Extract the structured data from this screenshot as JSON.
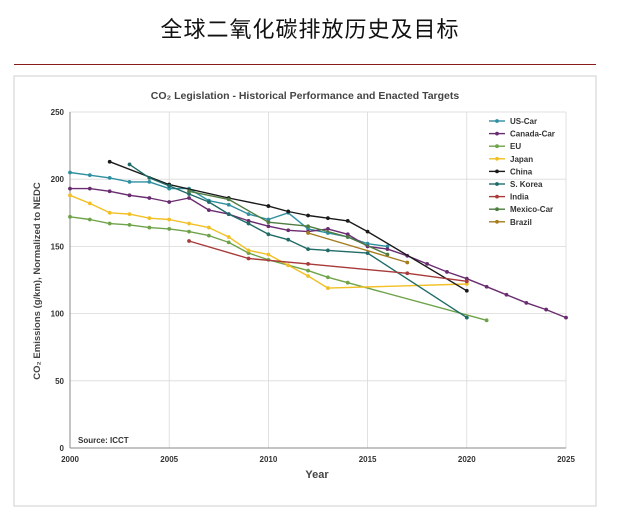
{
  "page": {
    "title": "全球二氧化碳排放历史及目标"
  },
  "chart_data": {
    "type": "line",
    "title": "CO₂ Legislation - Historical Performance and Enacted Targets",
    "xlabel": "Year",
    "ylabel": "CO₂ Emissions (g/km), Normalized to NEDC",
    "xlim": [
      2000,
      2025
    ],
    "ylim": [
      0,
      250
    ],
    "xticks": [
      2000,
      2005,
      2010,
      2015,
      2020,
      2025
    ],
    "yticks": [
      0,
      50,
      100,
      150,
      200,
      250
    ],
    "source": "Source: ICCT",
    "legend_position": "top-right",
    "series": [
      {
        "name": "US-Car",
        "color": "#2e8fa0",
        "points": [
          [
            2000,
            205
          ],
          [
            2001,
            203
          ],
          [
            2002,
            201
          ],
          [
            2003,
            198
          ],
          [
            2004,
            198
          ],
          [
            2005,
            193
          ],
          [
            2006,
            193
          ],
          [
            2007,
            184
          ],
          [
            2008,
            181
          ],
          [
            2009,
            174
          ],
          [
            2010,
            170
          ],
          [
            2011,
            175
          ],
          [
            2012,
            163
          ],
          [
            2013,
            160
          ],
          [
            2014,
            157
          ],
          [
            2015,
            152
          ],
          [
            2016,
            150
          ]
        ]
      },
      {
        "name": "Canada-Car",
        "color": "#6a2c70",
        "points": [
          [
            2000,
            193
          ],
          [
            2001,
            193
          ],
          [
            2002,
            191
          ],
          [
            2003,
            188
          ],
          [
            2004,
            186
          ],
          [
            2005,
            183
          ],
          [
            2006,
            186
          ],
          [
            2007,
            177
          ],
          [
            2008,
            174
          ],
          [
            2009,
            169
          ],
          [
            2010,
            165
          ],
          [
            2011,
            162
          ],
          [
            2012,
            161
          ],
          [
            2013,
            163
          ],
          [
            2014,
            159
          ],
          [
            2015,
            150
          ],
          [
            2016,
            148
          ],
          [
            2017,
            143
          ],
          [
            2018,
            137
          ],
          [
            2019,
            131
          ],
          [
            2020,
            126
          ],
          [
            2021,
            120
          ],
          [
            2022,
            114
          ],
          [
            2023,
            108
          ],
          [
            2024,
            103
          ],
          [
            2025,
            97
          ]
        ]
      },
      {
        "name": "EU",
        "color": "#6fa34a",
        "points": [
          [
            2000,
            172
          ],
          [
            2001,
            170
          ],
          [
            2002,
            167
          ],
          [
            2003,
            166
          ],
          [
            2004,
            164
          ],
          [
            2005,
            163
          ],
          [
            2006,
            161
          ],
          [
            2007,
            158
          ],
          [
            2008,
            153
          ],
          [
            2009,
            145
          ],
          [
            2010,
            140
          ],
          [
            2011,
            136
          ],
          [
            2012,
            132
          ],
          [
            2013,
            127
          ],
          [
            2014,
            123
          ],
          [
            2021,
            95
          ]
        ]
      },
      {
        "name": "Japan",
        "color": "#f2c024",
        "points": [
          [
            2000,
            188
          ],
          [
            2001,
            182
          ],
          [
            2002,
            175
          ],
          [
            2003,
            174
          ],
          [
            2004,
            171
          ],
          [
            2005,
            170
          ],
          [
            2006,
            167
          ],
          [
            2007,
            164
          ],
          [
            2008,
            157
          ],
          [
            2009,
            147
          ],
          [
            2010,
            144
          ],
          [
            2011,
            136
          ],
          [
            2012,
            128
          ],
          [
            2013,
            119
          ],
          [
            2020,
            122
          ]
        ]
      },
      {
        "name": "China",
        "color": "#1a1a1a",
        "points": [
          [
            2002,
            213
          ],
          [
            2005,
            196
          ],
          [
            2008,
            186
          ],
          [
            2010,
            180
          ],
          [
            2011,
            176
          ],
          [
            2012,
            173
          ],
          [
            2013,
            171
          ],
          [
            2014,
            169
          ],
          [
            2015,
            161
          ],
          [
            2020,
            117
          ]
        ]
      },
      {
        "name": "S. Korea",
        "color": "#1f6b68",
        "points": [
          [
            2003,
            211
          ],
          [
            2004,
            201
          ],
          [
            2005,
            195
          ],
          [
            2006,
            189
          ],
          [
            2007,
            183
          ],
          [
            2008,
            174
          ],
          [
            2009,
            167
          ],
          [
            2010,
            159
          ],
          [
            2011,
            155
          ],
          [
            2012,
            148
          ],
          [
            2013,
            147
          ],
          [
            2015,
            145
          ],
          [
            2020,
            97
          ]
        ]
      },
      {
        "name": "India",
        "color": "#a83a3a",
        "points": [
          [
            2006,
            154
          ],
          [
            2009,
            141
          ],
          [
            2012,
            137
          ],
          [
            2017,
            130
          ],
          [
            2020,
            124
          ]
        ]
      },
      {
        "name": "Mexico-Car",
        "color": "#4e7c41",
        "points": [
          [
            2006,
            191
          ],
          [
            2008,
            185
          ],
          [
            2010,
            168
          ],
          [
            2012,
            165
          ],
          [
            2014,
            157
          ],
          [
            2016,
            144
          ]
        ]
      },
      {
        "name": "Brazil",
        "color": "#a67c1f",
        "points": [
          [
            2012,
            160
          ],
          [
            2017,
            138
          ]
        ]
      }
    ]
  }
}
